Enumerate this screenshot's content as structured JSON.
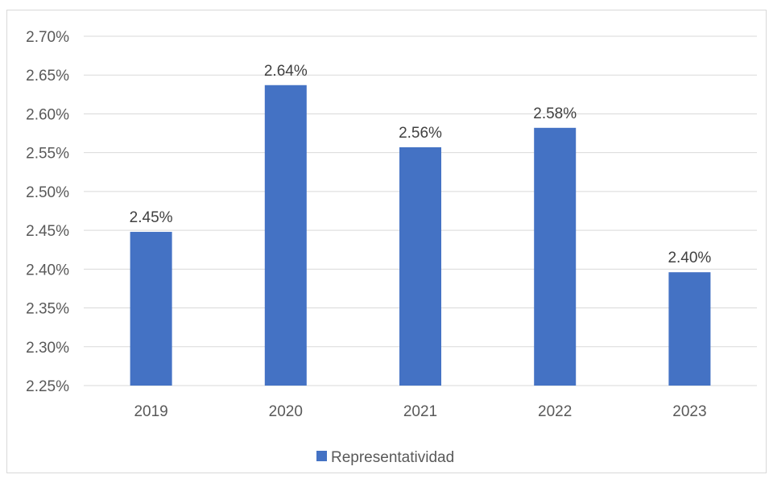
{
  "chart_data": {
    "type": "bar",
    "title": "",
    "xlabel": "",
    "ylabel": "",
    "categories": [
      "2019",
      "2020",
      "2021",
      "2022",
      "2023"
    ],
    "series": [
      {
        "name": "Representatividad",
        "values": [
          2.448,
          2.637,
          2.557,
          2.582,
          2.396
        ],
        "data_labels": [
          "2.45%",
          "2.64%",
          "2.56%",
          "2.58%",
          "2.40%"
        ],
        "color": "#4472c4"
      }
    ],
    "ylim": [
      2.25,
      2.7
    ],
    "y_ticks": [
      2.25,
      2.3,
      2.35,
      2.4,
      2.45,
      2.5,
      2.55,
      2.6,
      2.65,
      2.7
    ],
    "y_tick_labels": [
      "2.25%",
      "2.30%",
      "2.35%",
      "2.40%",
      "2.45%",
      "2.50%",
      "2.55%",
      "2.60%",
      "2.65%",
      "2.70%"
    ],
    "grid": true,
    "legend_position": "bottom",
    "gridline_color": "#d9d9d9",
    "axis_text_color": "#595959"
  }
}
